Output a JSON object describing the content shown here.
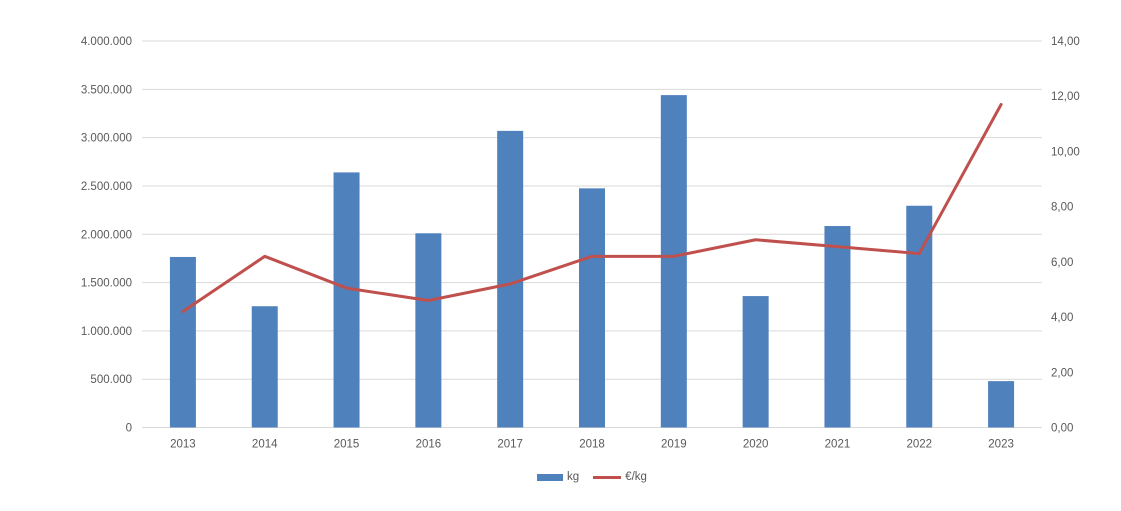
{
  "colors": {
    "bar": "#4F81BD",
    "line": "#C0504D",
    "grid": "#D9D9D9",
    "axis_text": "#595959",
    "background": "#FFFFFF"
  },
  "legend": {
    "items": [
      {
        "label": "kg",
        "swatch": "bar-swatch"
      },
      {
        "label": "€/kg",
        "swatch": "line-swatch"
      }
    ],
    "position": "bottom-center"
  },
  "chart_data": {
    "type": "combo-bar-line",
    "categories": [
      "2013",
      "2014",
      "2015",
      "2016",
      "2017",
      "2018",
      "2019",
      "2020",
      "2021",
      "2022",
      "2023"
    ],
    "series": [
      {
        "name": "kg",
        "type": "bar",
        "axis": "left",
        "color": "#4F81BD",
        "values": [
          1765000,
          1255000,
          2640000,
          2010000,
          3070000,
          2475000,
          3440000,
          1360000,
          2085000,
          2295000,
          480000
        ]
      },
      {
        "name": "€/kg",
        "type": "line",
        "axis": "right",
        "color": "#C0504D",
        "values": [
          4.2,
          6.2,
          5.05,
          4.6,
          5.2,
          6.2,
          6.2,
          6.8,
          6.55,
          6.3,
          11.7
        ]
      }
    ],
    "left_axis": {
      "min": 0,
      "max": 4000000,
      "tick_labels": [
        "0",
        "500.000",
        "1.000.000",
        "1.500.000",
        "2.000.000",
        "2.500.000",
        "3.000.000",
        "3.500.000",
        "4.000.000"
      ]
    },
    "right_axis": {
      "min": 0,
      "max": 14,
      "tick_labels": [
        "0,00",
        "2,00",
        "4,00",
        "6,00",
        "8,00",
        "10,00",
        "12,00",
        "14,00"
      ]
    },
    "grid": "horizontal",
    "legend_position": "bottom-center"
  }
}
